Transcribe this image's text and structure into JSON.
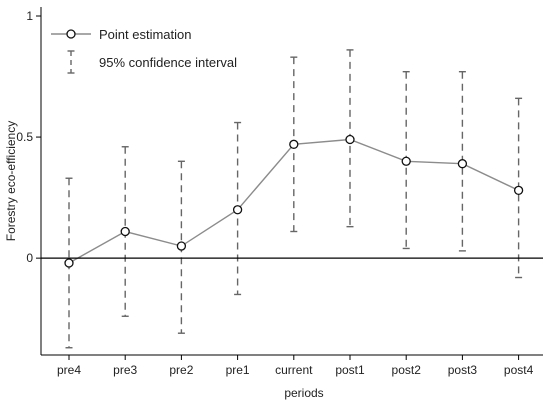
{
  "chart_data": {
    "type": "line",
    "xlabel": "periods",
    "ylabel": "Forestry eco-efficiency",
    "ylim": [
      -0.4,
      1.0
    ],
    "yticks": [
      0,
      0.5,
      1
    ],
    "ytick_labels": [
      "0",
      "0.5",
      "1"
    ],
    "grid": false,
    "legend_position": "top-left",
    "categories": [
      "pre4",
      "pre3",
      "pre2",
      "pre1",
      "current",
      "post1",
      "post2",
      "post3",
      "post4"
    ],
    "series": [
      {
        "name": "Point estimation",
        "values": [
          -0.02,
          0.11,
          0.05,
          0.2,
          0.47,
          0.49,
          0.4,
          0.39,
          0.28
        ],
        "ci_low": [
          -0.37,
          -0.24,
          -0.31,
          -0.15,
          0.11,
          0.13,
          0.04,
          0.03,
          -0.08
        ],
        "ci_high": [
          0.33,
          0.46,
          0.4,
          0.56,
          0.83,
          0.86,
          0.77,
          0.77,
          0.66
        ]
      }
    ],
    "legend": {
      "point_label": "Point estimation",
      "ci_label": "95% confidence interval"
    },
    "colors": {
      "line": "#8c8c8c",
      "marker_stroke": "#111111",
      "ci": "#666666",
      "zero_line": "#000000",
      "axis": "#000000"
    }
  }
}
